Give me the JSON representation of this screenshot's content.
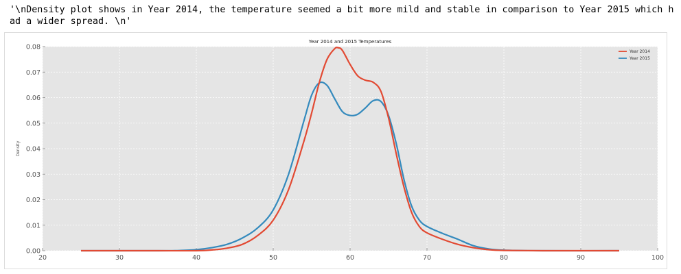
{
  "output_text": "'\\nDensity plot shows in Year 2014, the temperature seemed a bit more mild and stable in comparison to Year 2015 which had a wider spread. \\n'",
  "colors": {
    "year_2014": "#e24a33",
    "year_2015": "#348abd",
    "plot_bg": "#e5e5e5",
    "grid": "#ffffff"
  },
  "chart_data": {
    "type": "line",
    "title": "Year 2014 and 2015 Temperatures",
    "xlabel": "",
    "ylabel": "Density",
    "xlim": [
      20,
      100
    ],
    "ylim": [
      0,
      0.08
    ],
    "xticks": [
      "20",
      "30",
      "40",
      "50",
      "60",
      "70",
      "80",
      "90",
      "100"
    ],
    "yticks": [
      "0.00",
      "0.01",
      "0.02",
      "0.03",
      "0.04",
      "0.05",
      "0.06",
      "0.07",
      "0.08"
    ],
    "grid": true,
    "legend_position": "top-right",
    "series": [
      {
        "name": "Year 2014",
        "x": [
          25,
          35,
          40,
          42,
          44,
          46,
          48,
          50,
          52,
          54,
          55,
          56,
          57,
          58,
          58.5,
          59,
          60,
          61,
          62,
          63,
          64,
          65,
          66,
          67,
          68,
          69,
          70,
          72,
          74,
          76,
          78,
          80,
          85,
          95
        ],
        "y": [
          0,
          0,
          0,
          0.0003,
          0.001,
          0.0025,
          0.006,
          0.012,
          0.024,
          0.043,
          0.054,
          0.066,
          0.075,
          0.0792,
          0.0795,
          0.0785,
          0.073,
          0.0685,
          0.0668,
          0.066,
          0.0625,
          0.052,
          0.038,
          0.025,
          0.015,
          0.0095,
          0.007,
          0.0045,
          0.0025,
          0.0012,
          0.0004,
          0.0001,
          0,
          0
        ]
      },
      {
        "name": "Year 2015",
        "x": [
          25,
          35,
          38,
          40,
          42,
          44,
          46,
          48,
          50,
          52,
          54,
          55,
          56,
          57,
          58,
          59,
          60,
          61,
          62,
          63,
          64,
          65,
          66,
          67,
          68,
          69,
          70,
          72,
          74,
          76,
          78,
          80,
          85,
          95
        ],
        "y": [
          0,
          0,
          0.0001,
          0.0004,
          0.0012,
          0.0025,
          0.005,
          0.009,
          0.016,
          0.03,
          0.051,
          0.061,
          0.0658,
          0.0648,
          0.0595,
          0.0545,
          0.053,
          0.0535,
          0.056,
          0.0588,
          0.0585,
          0.053,
          0.042,
          0.028,
          0.0175,
          0.012,
          0.0095,
          0.0068,
          0.0045,
          0.002,
          0.0007,
          0.0002,
          0,
          0
        ]
      }
    ]
  }
}
